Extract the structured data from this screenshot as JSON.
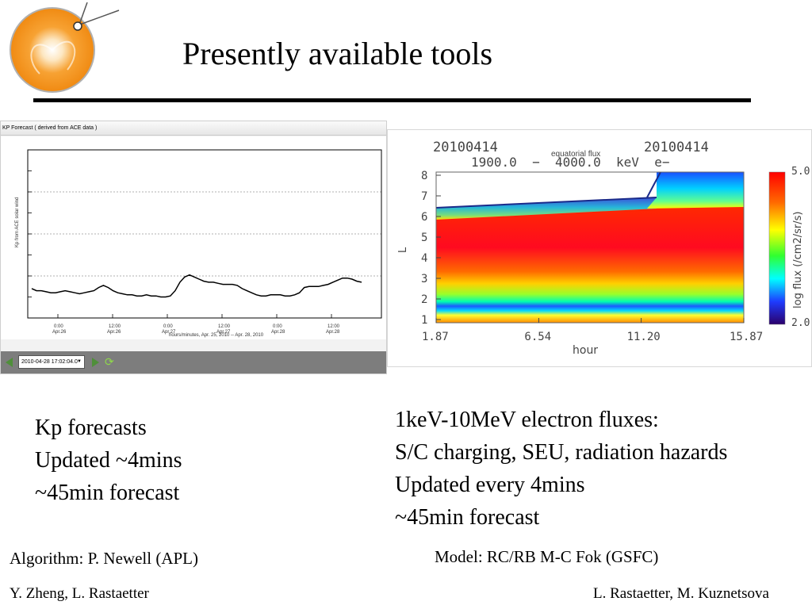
{
  "slide": {
    "title": "Presently available tools"
  },
  "kp_panel": {
    "header": "KP Forecast ( derived from ACE data )",
    "ylabel": "Kp from ACE solar wind",
    "xlabel": "hours/minutes, Apr. 25, 2010 -- Apr. 28, 2010",
    "x_ticks": [
      {
        "time": "0:00",
        "date": "Apr.26"
      },
      {
        "time": "12:00",
        "date": "Apr.26"
      },
      {
        "time": "0:00",
        "date": "Apr.27"
      },
      {
        "time": "12:00",
        "date": "Apr.27"
      },
      {
        "time": "0:00",
        "date": "Apr.28"
      },
      {
        "time": "12:00",
        "date": "Apr.28"
      }
    ],
    "toolbar": {
      "date_value": "2010-04-28 17:02:04.0",
      "prev_icon": "triangle-left-icon",
      "next_icon": "triangle-right-icon",
      "refresh_icon": "refresh-icon"
    },
    "chart_data": {
      "type": "line",
      "y_scale_max_ticks": 8,
      "x": [
        0,
        1,
        2,
        3,
        4,
        5,
        6,
        7,
        8,
        9,
        10,
        11,
        12,
        13,
        14,
        15,
        16,
        17,
        18,
        19,
        20,
        21,
        22,
        23,
        24,
        25,
        26,
        27,
        28,
        29,
        30,
        31,
        32,
        33,
        34,
        35,
        36,
        37,
        38,
        39,
        40,
        41,
        42,
        43,
        44,
        45,
        46,
        47,
        48,
        49,
        50,
        51,
        52,
        53,
        54,
        55,
        56,
        57,
        58,
        59,
        60,
        61,
        62,
        63,
        64,
        65,
        66,
        67,
        68,
        69
      ],
      "values": [
        1.4,
        1.3,
        1.3,
        1.25,
        1.2,
        1.2,
        1.25,
        1.3,
        1.25,
        1.2,
        1.15,
        1.2,
        1.25,
        1.3,
        1.45,
        1.55,
        1.45,
        1.3,
        1.2,
        1.15,
        1.1,
        1.1,
        1.05,
        1.05,
        1.1,
        1.05,
        1.05,
        1.0,
        1.0,
        1.05,
        1.3,
        1.7,
        1.95,
        2.05,
        1.95,
        1.85,
        1.75,
        1.7,
        1.7,
        1.65,
        1.6,
        1.6,
        1.6,
        1.55,
        1.4,
        1.3,
        1.2,
        1.1,
        1.05,
        1.05,
        1.1,
        1.1,
        1.1,
        1.05,
        1.05,
        1.1,
        1.2,
        1.45,
        1.5,
        1.5,
        1.5,
        1.55,
        1.6,
        1.7,
        1.8,
        1.9,
        1.9,
        1.85,
        1.75,
        1.7
      ]
    }
  },
  "flux_panel": {
    "date_left": "20100414",
    "date_right": "20100414",
    "subtitle": "equatorial flux",
    "energy_range": "1900.0  −  4000.0  keV  e−",
    "ylabel": "L",
    "xlabel": "hour",
    "colorbar_label": "log flux (/cm2/sr/s)",
    "colorbar_max": "5.0",
    "colorbar_min": "2.0",
    "chart_data": {
      "type": "heatmap",
      "x_ticks": [
        "1.87",
        "6.54",
        "11.20",
        "15.87"
      ],
      "y_ticks": [
        "1",
        "2",
        "3",
        "4",
        "5",
        "6",
        "7",
        "8"
      ],
      "xlim": [
        1.87,
        15.87
      ],
      "ylim": [
        1,
        8
      ],
      "color_range": [
        2.0,
        5.0
      ],
      "colors": {
        "high": "#ff0000",
        "mid_high": "#ff8c00",
        "mid": "#ffff00",
        "low": "#00ff66",
        "lower": "#00c8ff",
        "lowest": "#1e3cff",
        "min": "#2b006b"
      }
    }
  },
  "kp_text": {
    "line1": "Kp forecasts",
    "line2": "Updated ~4mins",
    "line3": "~45min forecast"
  },
  "flux_text": {
    "line1": "1keV-10MeV electron fluxes:",
    "line2": "S/C charging, SEU, radiation hazards",
    "line3": "Updated every 4mins",
    "line4": "~45min forecast"
  },
  "credits": {
    "kp_algorithm": "Algorithm: P. Newell (APL)",
    "flux_model": "Model: RC/RB M-C Fok (GSFC)",
    "kp_authors": "Y. Zheng, L. Rastaetter",
    "flux_authors": "L. Rastaetter, M. Kuznetsova"
  }
}
